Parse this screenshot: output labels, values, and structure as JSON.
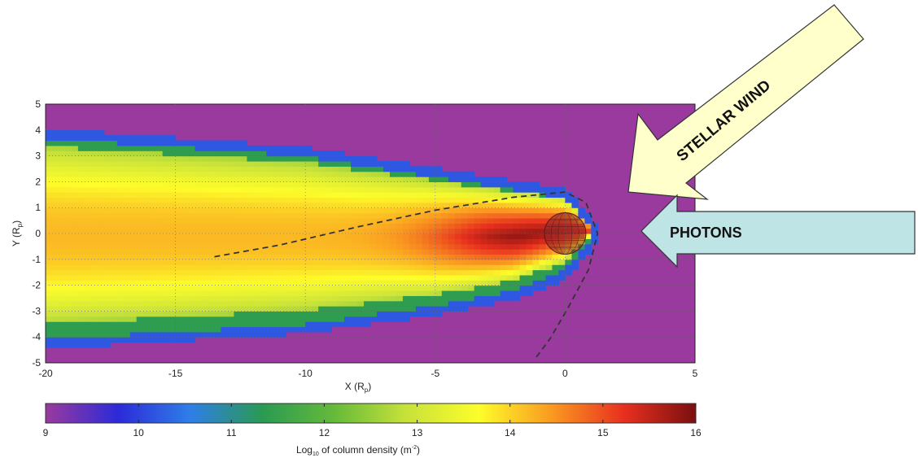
{
  "chart_data": {
    "type": "heatmap",
    "xlabel_main": "X (R",
    "xlabel_sub": "p",
    "xlabel_end": ")",
    "ylabel_main": "Y (R",
    "ylabel_sub": "p",
    "ylabel_end": ")",
    "xlim": [
      -20,
      5
    ],
    "ylim": [
      -5,
      5
    ],
    "x_ticks": [
      -20,
      -15,
      -10,
      -5,
      0,
      5
    ],
    "x_tick_labels": [
      "-20",
      "-15",
      "-10",
      "-5",
      "0",
      "5"
    ],
    "y_ticks": [
      -5,
      -4,
      -3,
      -2,
      -1,
      0,
      1,
      2,
      3,
      4,
      5
    ],
    "y_tick_labels": [
      "-5",
      "-4",
      "-3",
      "-2",
      "-1",
      "0",
      "1",
      "2",
      "3",
      "4",
      "5"
    ],
    "grid": true,
    "background_value": 9,
    "planet": {
      "x": 0,
      "y": 0,
      "radius": 0.8
    },
    "plume": {
      "core_y_max_at_x0": 1.6,
      "outer_envelope": [
        [
          -20,
          3.7
        ],
        [
          -10,
          3.0
        ],
        [
          -5,
          2.2
        ],
        [
          -2,
          1.7
        ],
        [
          0,
          1.4
        ],
        [
          1.2,
          0
        ]
      ],
      "inner_envelope_bottom": [
        [
          -20,
          -4.1
        ],
        [
          -10,
          -3.5
        ],
        [
          -5,
          -2.8
        ],
        [
          -2,
          -2.2
        ],
        [
          0,
          -1.4
        ],
        [
          1.2,
          0
        ]
      ]
    },
    "dashed_curve": [
      [
        -13.5,
        -0.9
      ],
      [
        -11,
        -0.45
      ],
      [
        -8,
        0.25
      ],
      [
        -5,
        0.9
      ],
      [
        -2,
        1.4
      ],
      [
        0,
        1.6
      ],
      [
        0.8,
        1.2
      ],
      [
        1.25,
        0
      ],
      [
        0.9,
        -1.4
      ],
      [
        0.1,
        -2.9
      ],
      [
        -0.6,
        -4.1
      ],
      [
        -1.2,
        -4.9
      ]
    ],
    "colorbar": {
      "min": 9,
      "max": 16,
      "ticks": [
        9,
        10,
        11,
        12,
        13,
        14,
        15,
        16
      ],
      "tick_labels": [
        "9",
        "10",
        "11",
        "12",
        "13",
        "14",
        "15",
        "16"
      ],
      "label_main": "Log",
      "label_sub": "10",
      "label_mid": " of column density (m",
      "label_sup": "-2",
      "label_end": ")",
      "colormap": [
        "#9a3a9e",
        "#2c2ad8",
        "#2f7ee8",
        "#2a9a52",
        "#66ba3a",
        "#c8e23a",
        "#fdfd2a",
        "#fa9a20",
        "#e8301f",
        "#7a0f0f"
      ]
    },
    "annotations": {
      "stellar_wind": "STELLAR WIND",
      "photons": "PHOTONS"
    },
    "colors": {
      "arrow_wind_fill": "#ffffcc",
      "arrow_photon_fill": "#bfe4e6",
      "arrow_stroke": "#333333"
    }
  }
}
